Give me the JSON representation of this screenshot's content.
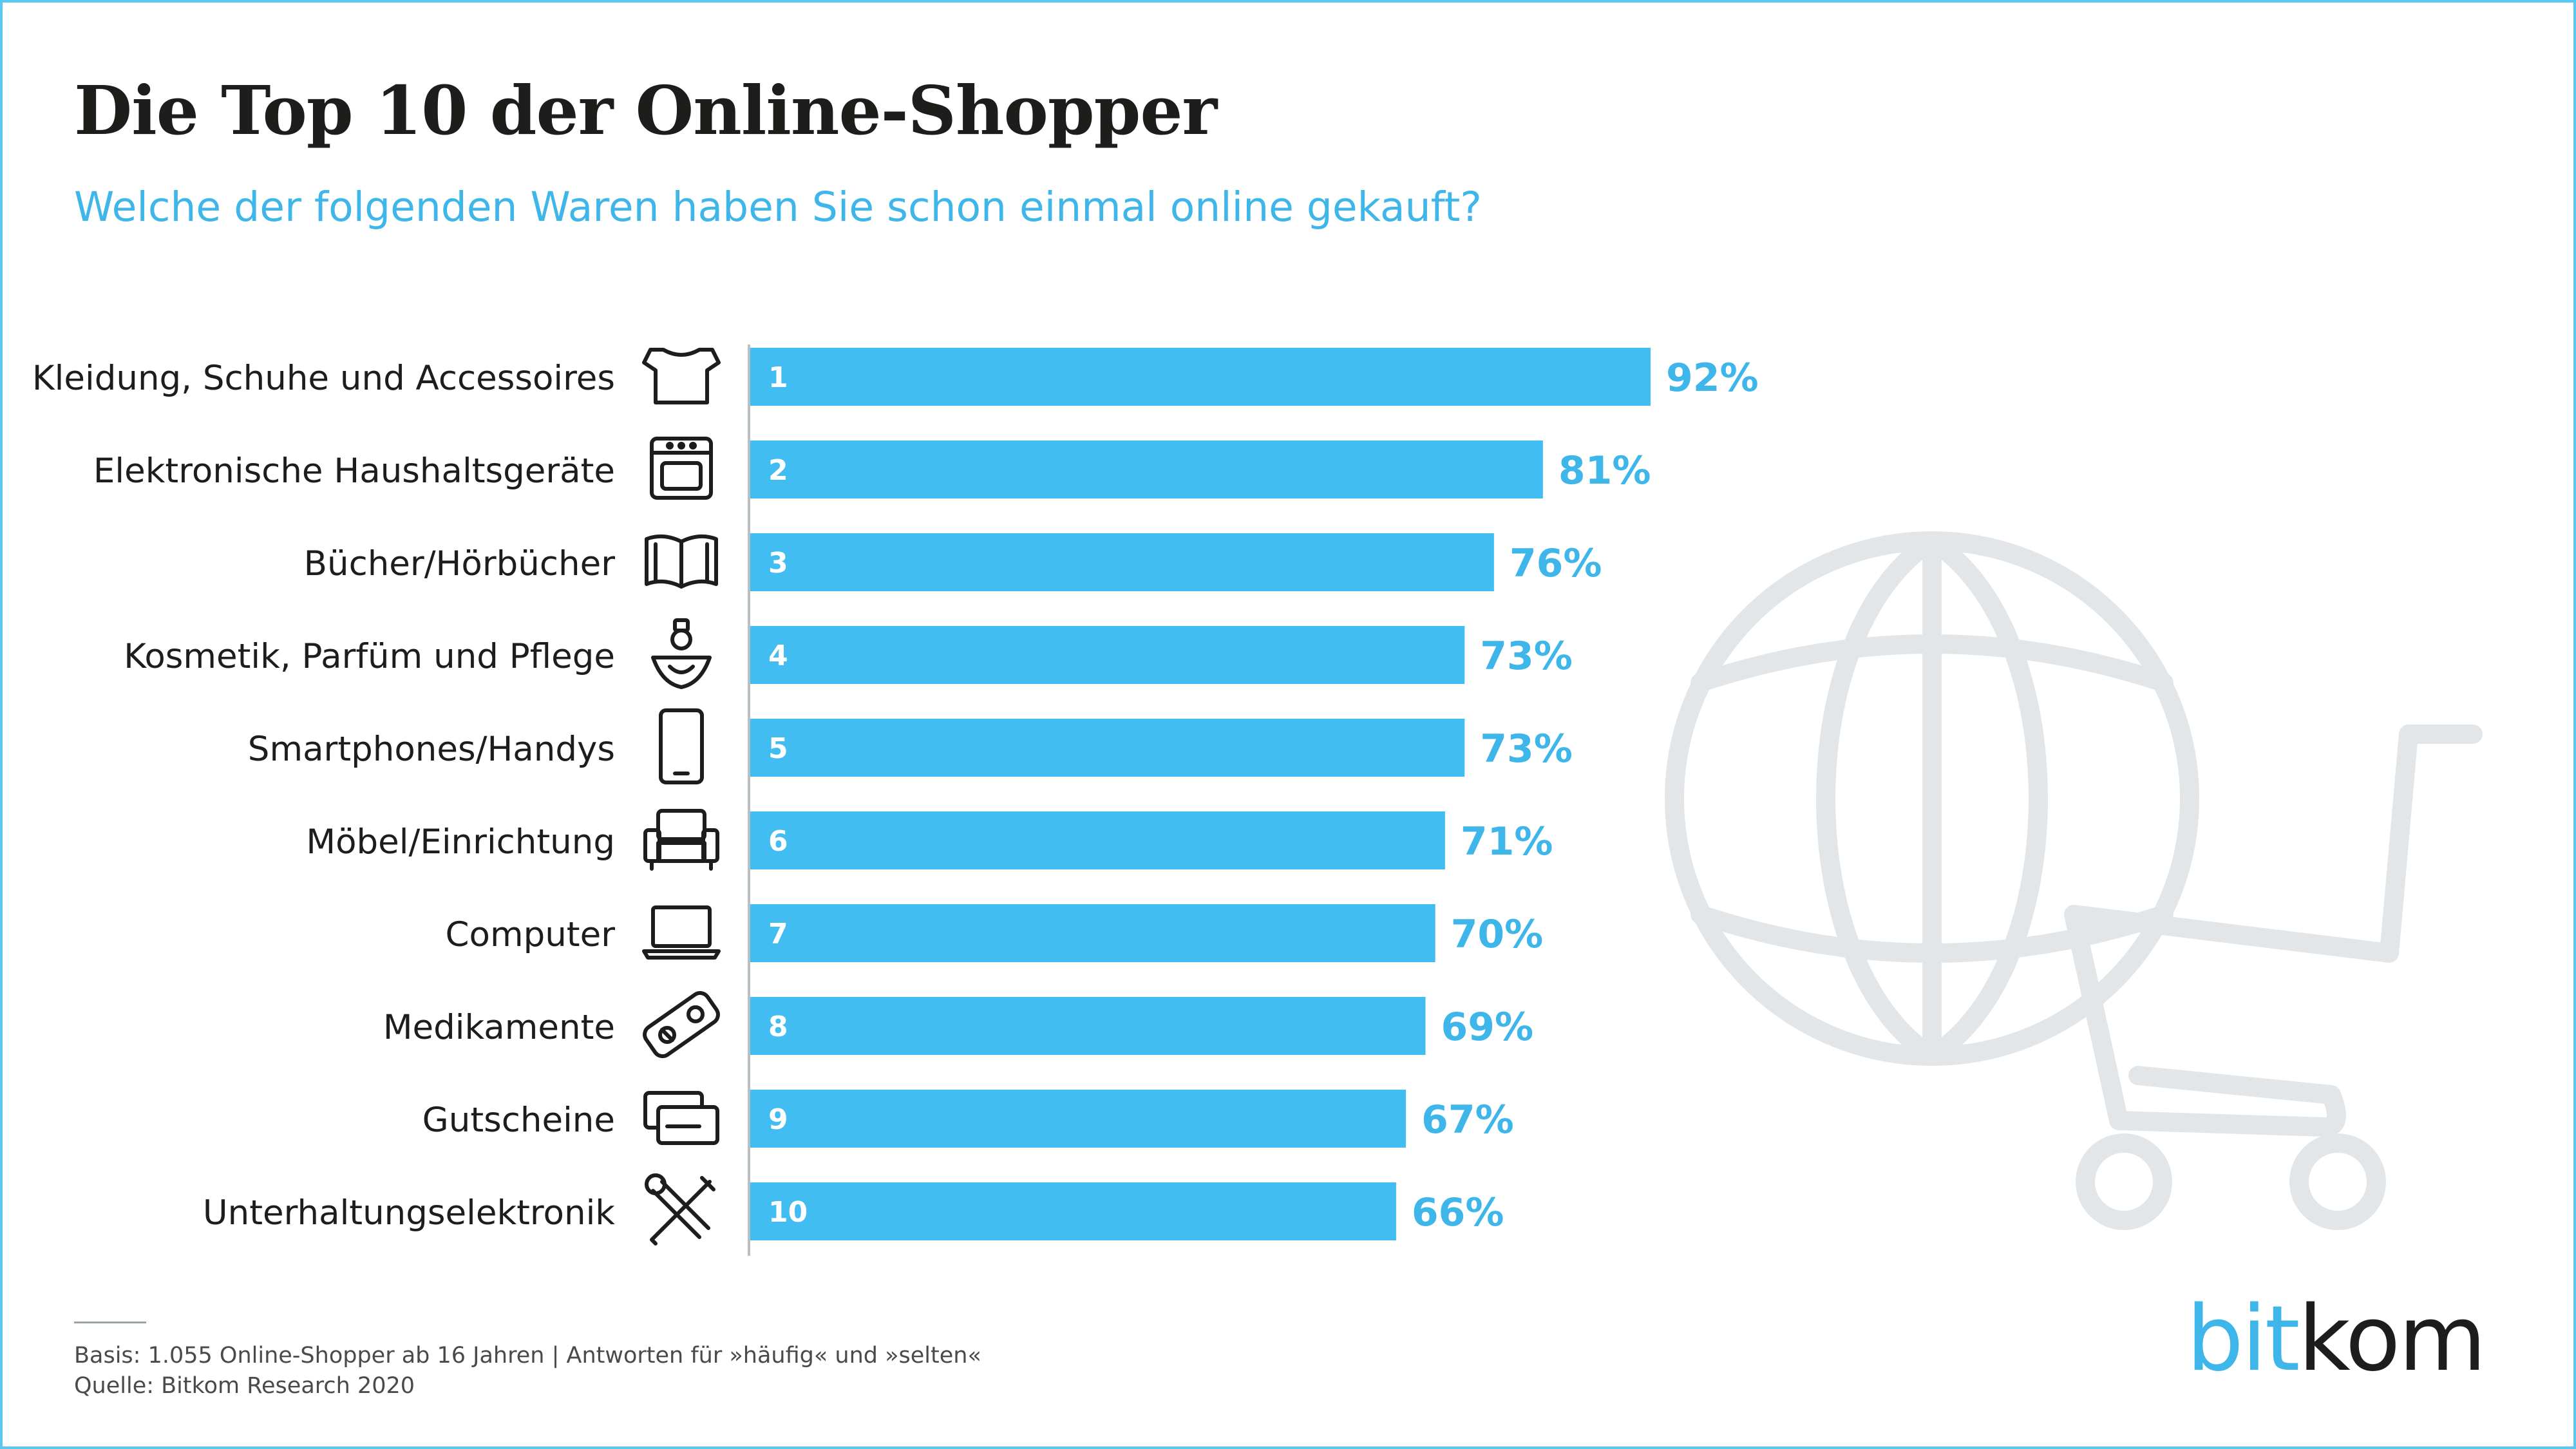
{
  "title": "Die Top 10 der Online-Shopper",
  "subtitle": "Welche der folgenden Waren haben Sie schon einmal online gekauft?",
  "footnote_basis": "Basis: 1.055 Online-Shopper ab 16 Jahren | Antworten für »häufig« und »selten«",
  "footnote_source": "Quelle: Bitkom Research 2020",
  "logo": {
    "part1": "bit",
    "part2": "kom"
  },
  "colors": {
    "bar": "#41bdf2",
    "value_label": "#3fb6ea",
    "rank_label": "#ffffff",
    "text": "#1d1d1b",
    "background_graphic": "#e3e6e8"
  },
  "chart_data": {
    "type": "bar",
    "orientation": "horizontal",
    "categories": [
      "Kleidung, Schuhe und Accessoires",
      "Elektronische Haushaltsgeräte",
      "Bücher/Hörbücher",
      "Kosmetik, Parfüm und Pflege",
      "Smartphones/Handys",
      "Möbel/Einrichtung",
      "Computer",
      "Medikamente",
      "Gutscheine",
      "Unterhaltungselektronik"
    ],
    "ranks": [
      "1",
      "2",
      "3",
      "4",
      "5",
      "6",
      "7",
      "8",
      "9",
      "10"
    ],
    "values": [
      92,
      81,
      76,
      73,
      73,
      71,
      70,
      69,
      67,
      66
    ],
    "value_labels": [
      "92%",
      "81%",
      "76%",
      "73%",
      "73%",
      "71%",
      "70%",
      "69%",
      "67%",
      "66%"
    ],
    "icons": [
      "tshirt-icon",
      "oven-icon",
      "book-icon",
      "perfume-icon",
      "smartphone-icon",
      "armchair-icon",
      "laptop-icon",
      "pills-icon",
      "voucher-icon",
      "tools-icon"
    ],
    "unit": "%",
    "xlim": [
      0,
      100
    ]
  }
}
